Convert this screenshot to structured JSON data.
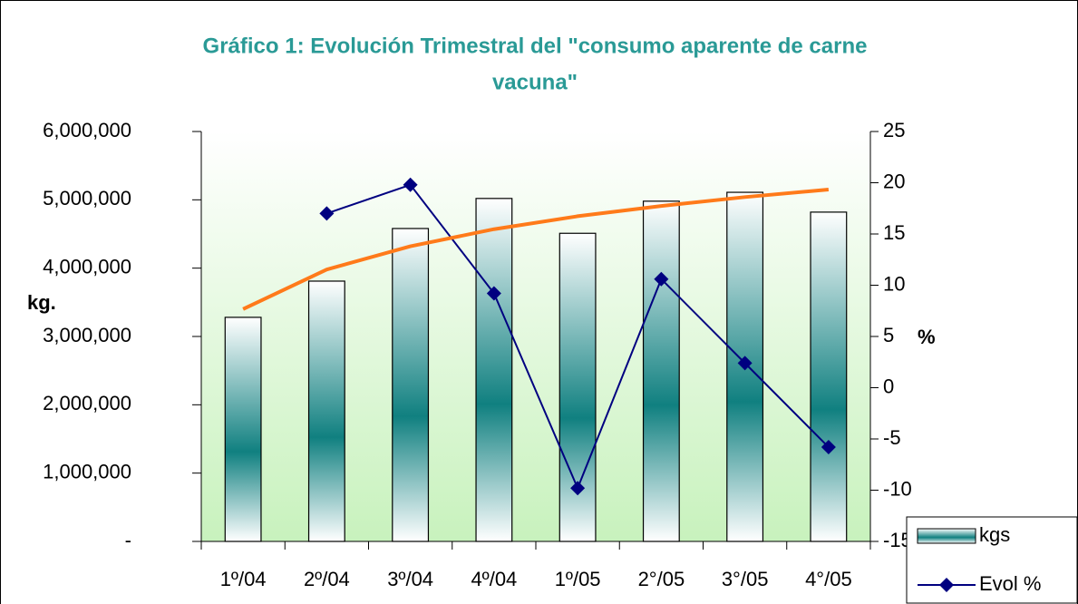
{
  "chart_data": {
    "type": "bar",
    "title": [
      "Gráfico 1: Evolución Trimestral  del \"consumo aparente de carne",
      "vacuna\""
    ],
    "y_label": "kg.",
    "y2_label": "%",
    "categories": [
      "1º/04",
      "2º/04",
      "3º/04",
      "4º/04",
      "1º/05",
      "2°/05",
      "3°/05",
      "4°/05"
    ],
    "series": [
      {
        "name": "kgs",
        "color": "#108080",
        "values": [
          3280000,
          3810000,
          4580000,
          5020000,
          4510000,
          4980000,
          5110000,
          4820000
        ]
      },
      {
        "name": "Evol %",
        "color": "#000080",
        "axis": "y2",
        "values": [
          null,
          17.0,
          19.8,
          9.2,
          -9.8,
          10.6,
          2.4,
          -5.8
        ]
      }
    ],
    "trendline": {
      "color": "#ff7a1a",
      "values": [
        3400000,
        3980000,
        4320000,
        4570000,
        4760000,
        4910000,
        5040000,
        5150000
      ]
    },
    "ylim": [
      0,
      6000000
    ],
    "yticks": [
      {
        "value": 0,
        "label": "-"
      },
      {
        "value": 1000000,
        "label": "1,000,000"
      },
      {
        "value": 2000000,
        "label": "2,000,000"
      },
      {
        "value": 3000000,
        "label": "3,000,000"
      },
      {
        "value": 4000000,
        "label": "4,000,000"
      },
      {
        "value": 5000000,
        "label": "5,000,000"
      },
      {
        "value": 6000000,
        "label": "6,000,000"
      }
    ],
    "y2lim": [
      -15,
      25
    ],
    "y2ticks": [
      -15,
      -10,
      -5,
      0,
      5,
      10,
      15,
      20,
      25
    ]
  }
}
